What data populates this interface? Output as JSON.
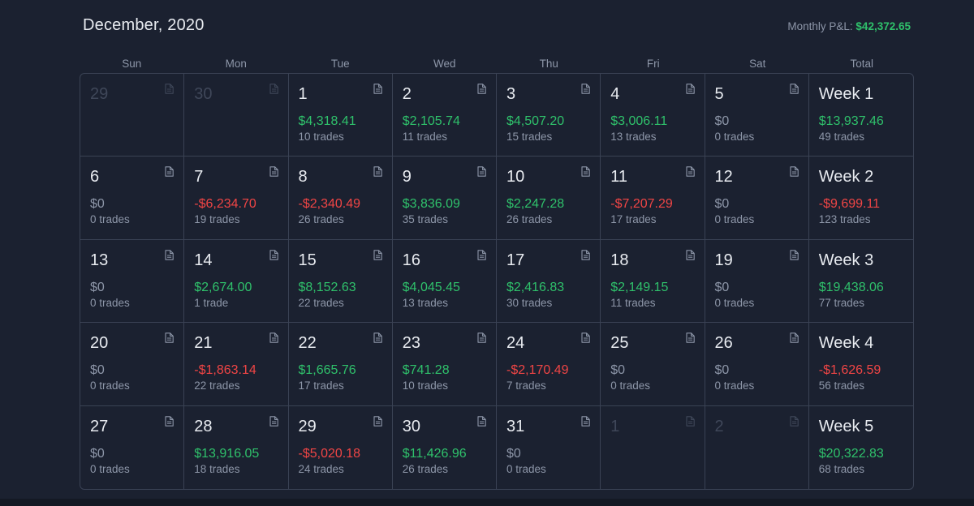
{
  "header": {
    "month_title": "December, 2020",
    "monthly_pnl_label": "Monthly P&L:",
    "monthly_pnl_value": "$42,372.65"
  },
  "weekdays": [
    "Sun",
    "Mon",
    "Tue",
    "Wed",
    "Thu",
    "Fri",
    "Sat",
    "Total"
  ],
  "colors": {
    "positive": "#2fc16b",
    "negative": "#f04545",
    "neutral": "#8d96a8",
    "background": "#1b2130",
    "border": "#3a4254"
  },
  "weeks": [
    {
      "days": [
        {
          "day": "29",
          "muted": true
        },
        {
          "day": "30",
          "muted": true
        },
        {
          "day": "1",
          "pnl": "$4,318.41",
          "trades": "10 trades",
          "sign": "pos"
        },
        {
          "day": "2",
          "pnl": "$2,105.74",
          "trades": "11 trades",
          "sign": "pos"
        },
        {
          "day": "3",
          "pnl": "$4,507.20",
          "trades": "15 trades",
          "sign": "pos"
        },
        {
          "day": "4",
          "pnl": "$3,006.11",
          "trades": "13 trades",
          "sign": "pos"
        },
        {
          "day": "5",
          "pnl": "$0",
          "trades": "0 trades",
          "sign": "zero"
        }
      ],
      "total": {
        "label": "Week 1",
        "pnl": "$13,937.46",
        "trades": "49 trades",
        "sign": "pos"
      }
    },
    {
      "days": [
        {
          "day": "6",
          "pnl": "$0",
          "trades": "0 trades",
          "sign": "zero"
        },
        {
          "day": "7",
          "pnl": "-$6,234.70",
          "trades": "19 trades",
          "sign": "neg"
        },
        {
          "day": "8",
          "pnl": "-$2,340.49",
          "trades": "26 trades",
          "sign": "neg"
        },
        {
          "day": "9",
          "pnl": "$3,836.09",
          "trades": "35 trades",
          "sign": "pos"
        },
        {
          "day": "10",
          "pnl": "$2,247.28",
          "trades": "26 trades",
          "sign": "pos"
        },
        {
          "day": "11",
          "pnl": "-$7,207.29",
          "trades": "17 trades",
          "sign": "neg"
        },
        {
          "day": "12",
          "pnl": "$0",
          "trades": "0 trades",
          "sign": "zero"
        }
      ],
      "total": {
        "label": "Week 2",
        "pnl": "-$9,699.11",
        "trades": "123 trades",
        "sign": "neg"
      }
    },
    {
      "days": [
        {
          "day": "13",
          "pnl": "$0",
          "trades": "0 trades",
          "sign": "zero"
        },
        {
          "day": "14",
          "pnl": "$2,674.00",
          "trades": "1 trade",
          "sign": "pos"
        },
        {
          "day": "15",
          "pnl": "$8,152.63",
          "trades": "22 trades",
          "sign": "pos"
        },
        {
          "day": "16",
          "pnl": "$4,045.45",
          "trades": "13 trades",
          "sign": "pos"
        },
        {
          "day": "17",
          "pnl": "$2,416.83",
          "trades": "30 trades",
          "sign": "pos"
        },
        {
          "day": "18",
          "pnl": "$2,149.15",
          "trades": "11 trades",
          "sign": "pos"
        },
        {
          "day": "19",
          "pnl": "$0",
          "trades": "0 trades",
          "sign": "zero"
        }
      ],
      "total": {
        "label": "Week 3",
        "pnl": "$19,438.06",
        "trades": "77 trades",
        "sign": "pos"
      }
    },
    {
      "days": [
        {
          "day": "20",
          "pnl": "$0",
          "trades": "0 trades",
          "sign": "zero"
        },
        {
          "day": "21",
          "pnl": "-$1,863.14",
          "trades": "22 trades",
          "sign": "neg"
        },
        {
          "day": "22",
          "pnl": "$1,665.76",
          "trades": "17 trades",
          "sign": "pos"
        },
        {
          "day": "23",
          "pnl": "$741.28",
          "trades": "10 trades",
          "sign": "pos"
        },
        {
          "day": "24",
          "pnl": "-$2,170.49",
          "trades": "7 trades",
          "sign": "neg"
        },
        {
          "day": "25",
          "pnl": "$0",
          "trades": "0 trades",
          "sign": "zero"
        },
        {
          "day": "26",
          "pnl": "$0",
          "trades": "0 trades",
          "sign": "zero"
        }
      ],
      "total": {
        "label": "Week 4",
        "pnl": "-$1,626.59",
        "trades": "56 trades",
        "sign": "neg"
      }
    },
    {
      "days": [
        {
          "day": "27",
          "pnl": "$0",
          "trades": "0 trades",
          "sign": "zero"
        },
        {
          "day": "28",
          "pnl": "$13,916.05",
          "trades": "18 trades",
          "sign": "pos"
        },
        {
          "day": "29",
          "pnl": "-$5,020.18",
          "trades": "24 trades",
          "sign": "neg"
        },
        {
          "day": "30",
          "pnl": "$11,426.96",
          "trades": "26 trades",
          "sign": "pos"
        },
        {
          "day": "31",
          "pnl": "$0",
          "trades": "0 trades",
          "sign": "zero"
        },
        {
          "day": "1",
          "muted": true
        },
        {
          "day": "2",
          "muted": true
        }
      ],
      "total": {
        "label": "Week 5",
        "pnl": "$20,322.83",
        "trades": "68 trades",
        "sign": "pos"
      }
    }
  ]
}
